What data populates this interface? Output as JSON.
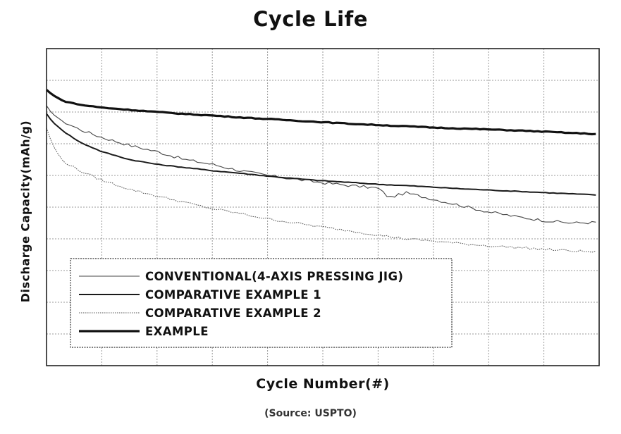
{
  "chart_data": {
    "type": "line",
    "title": "Cycle Life",
    "xlabel": "Cycle Number(#)",
    "ylabel": "Discharge Capacity(mAh/g)",
    "xlim": [
      0,
      100
    ],
    "ylim": [
      0,
      100
    ],
    "grid": true,
    "legend_position": "bottom-left",
    "series": [
      {
        "name": "CONVENTIONAL(4-AXIS PRESSING JIG)",
        "style": "thin",
        "x": [
          0,
          1,
          3,
          6,
          10,
          15,
          20,
          25,
          30,
          35,
          40,
          45,
          50,
          55,
          60,
          62,
          65,
          70,
          75,
          80,
          85,
          90,
          95,
          100
        ],
        "y": [
          82,
          79.5,
          77,
          74.5,
          72,
          69.5,
          67.5,
          65,
          63.5,
          61.5,
          60,
          58.8,
          57.7,
          56.8,
          56,
          53,
          54.5,
          52.5,
          50.5,
          48.5,
          47,
          45.8,
          45,
          45.2
        ]
      },
      {
        "name": "COMPARATIVE EXAMPLE 1",
        "style": "medium",
        "x": [
          0,
          1,
          3,
          6,
          10,
          15,
          20,
          25,
          30,
          35,
          40,
          45,
          50,
          55,
          60,
          65,
          70,
          75,
          80,
          85,
          90,
          95,
          100
        ],
        "y": [
          79.5,
          77,
          74,
          70.5,
          67.5,
          65,
          63.5,
          62.5,
          61.5,
          60.7,
          59.8,
          59,
          58.3,
          57.8,
          57.2,
          56.8,
          56.3,
          55.8,
          55.4,
          55,
          54.6,
          54.2,
          53.8
        ]
      },
      {
        "name": "COMPARATIVE EXAMPLE 2",
        "style": "dotted",
        "x": [
          0,
          1,
          2,
          3,
          6,
          10,
          15,
          20,
          25,
          30,
          35,
          40,
          45,
          50,
          55,
          60,
          65,
          70,
          75,
          80,
          85,
          90,
          95,
          100
        ],
        "y": [
          75,
          70,
          67,
          64.5,
          61.5,
          58.5,
          55.7,
          53.5,
          51.5,
          49.5,
          48,
          46.3,
          45,
          43.7,
          42.5,
          41.2,
          40,
          39.3,
          38.5,
          37.8,
          37.3,
          36.7,
          36.2,
          35.8
        ]
      },
      {
        "name": "EXAMPLE",
        "style": "thick",
        "x": [
          0,
          1,
          3,
          6,
          10,
          15,
          20,
          25,
          30,
          35,
          40,
          45,
          50,
          55,
          60,
          65,
          70,
          75,
          80,
          85,
          90,
          95,
          100
        ],
        "y": [
          87,
          85.5,
          83.5,
          82.3,
          81.4,
          80.7,
          80,
          79.4,
          78.9,
          78.3,
          77.8,
          77.3,
          76.8,
          76.3,
          75.9,
          75.5,
          75.1,
          74.8,
          74.5,
          74.2,
          73.8,
          73.4,
          73
        ]
      }
    ]
  },
  "source_note": "(Source: USPTO)"
}
